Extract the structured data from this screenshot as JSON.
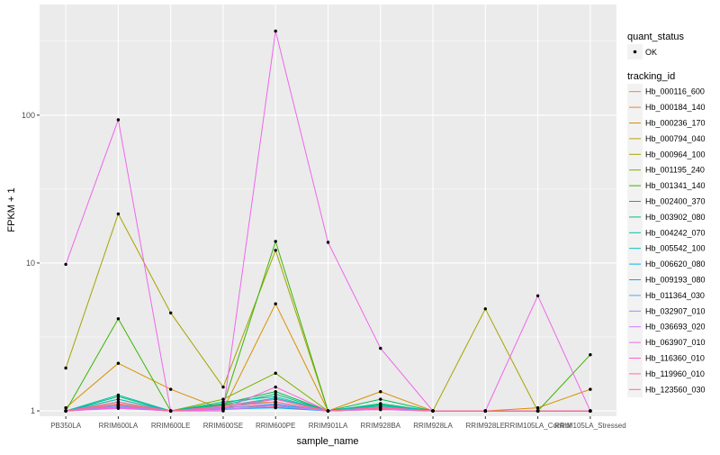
{
  "chart_data": {
    "type": "line",
    "title": "",
    "xlabel": "sample_name",
    "ylabel": "FPKM + 1",
    "y_scale": "log10",
    "ylim": [
      0.92,
      560
    ],
    "y_ticks": [
      1,
      10,
      100
    ],
    "y_tick_labels": [
      "1",
      "10",
      "100"
    ],
    "grid": true,
    "panel_background": "#ebebeb",
    "legend_position": "right",
    "categories": [
      "PB350LA",
      "RRIM600LA",
      "RRIM600LE",
      "RRIM600SE",
      "RRIM600PE",
      "RRIM901LA",
      "RRIM928BA",
      "RRIM928LA",
      "RRIM928LE",
      "RRIM105LA_Control",
      "RRIM105LA_Stressed"
    ],
    "shape_legend": {
      "title": "quant_status",
      "entries": [
        {
          "label": "OK",
          "color": "#000000"
        }
      ]
    },
    "color_legend_title": "tracking_id",
    "series": [
      {
        "name": "Hb_000116_600",
        "color": "#F8766D",
        "values": [
          1.0,
          1.12,
          1.0,
          1.05,
          1.08,
          1.0,
          1.03,
          1.0,
          1.0,
          1.0,
          1.0
        ]
      },
      {
        "name": "Hb_000184_140",
        "color": "#EA8331",
        "values": [
          1.0,
          1.08,
          1.0,
          1.02,
          1.06,
          1.0,
          1.02,
          1.0,
          1.0,
          1.0,
          1.0
        ]
      },
      {
        "name": "Hb_000236_170",
        "color": "#D89000",
        "values": [
          1.05,
          2.1,
          1.4,
          1.02,
          5.3,
          1.0,
          1.35,
          1.0,
          1.0,
          1.05,
          1.4
        ]
      },
      {
        "name": "Hb_000794_040",
        "color": "#C09B00",
        "values": [
          1.0,
          1.1,
          1.0,
          1.1,
          1.15,
          1.0,
          1.05,
          1.0,
          1.0,
          1.0,
          1.0
        ]
      },
      {
        "name": "Hb_000964_100",
        "color": "#A3A500",
        "values": [
          1.95,
          21.5,
          4.6,
          1.45,
          12.2,
          1.0,
          1.1,
          1.0,
          4.9,
          1.0,
          1.0
        ]
      },
      {
        "name": "Hb_001195_240",
        "color": "#7CAE00",
        "values": [
          1.0,
          1.2,
          1.0,
          1.2,
          1.8,
          1.0,
          1.08,
          1.0,
          1.0,
          1.0,
          1.0
        ]
      },
      {
        "name": "Hb_001341_140",
        "color": "#39B600",
        "values": [
          1.0,
          4.2,
          1.0,
          1.1,
          14.0,
          1.0,
          1.1,
          1.0,
          1.0,
          1.0,
          2.4
        ]
      },
      {
        "name": "Hb_002400_370",
        "color": "#00BB4E",
        "values": [
          1.0,
          1.15,
          1.0,
          1.12,
          1.35,
          1.0,
          1.2,
          1.0,
          1.0,
          1.0,
          1.0
        ]
      },
      {
        "name": "Hb_003902_080",
        "color": "#00BF7D",
        "values": [
          1.0,
          1.25,
          1.0,
          1.1,
          1.3,
          1.0,
          1.12,
          1.0,
          1.0,
          1.0,
          1.0
        ]
      },
      {
        "name": "Hb_004242_070",
        "color": "#00C1A3",
        "values": [
          1.0,
          1.28,
          1.0,
          1.15,
          1.25,
          1.0,
          1.1,
          1.0,
          1.0,
          1.0,
          1.0
        ]
      },
      {
        "name": "Hb_005542_100",
        "color": "#00BFC4",
        "values": [
          1.0,
          1.2,
          1.0,
          1.08,
          1.22,
          1.0,
          1.08,
          1.0,
          1.0,
          1.0,
          1.0
        ]
      },
      {
        "name": "Hb_006620_080",
        "color": "#00B8E5",
        "values": [
          1.0,
          1.1,
          1.0,
          1.05,
          1.1,
          1.0,
          1.05,
          1.0,
          1.0,
          1.0,
          1.0
        ]
      },
      {
        "name": "Hb_009193_080",
        "color": "#00ABFD",
        "values": [
          1.0,
          1.05,
          1.0,
          1.03,
          1.05,
          1.0,
          1.03,
          1.0,
          1.0,
          1.0,
          1.0
        ]
      },
      {
        "name": "Hb_011364_030",
        "color": "#619CFF",
        "values": [
          1.0,
          1.08,
          1.0,
          1.05,
          1.2,
          1.0,
          1.05,
          1.0,
          1.0,
          1.0,
          1.0
        ]
      },
      {
        "name": "Hb_032907_010",
        "color": "#A58AFF",
        "values": [
          1.0,
          1.06,
          1.0,
          1.04,
          1.12,
          1.0,
          1.04,
          1.0,
          1.0,
          1.0,
          1.0
        ]
      },
      {
        "name": "Hb_036693_020",
        "color": "#D277FF",
        "values": [
          1.0,
          1.04,
          1.0,
          1.02,
          1.08,
          1.0,
          1.02,
          1.0,
          1.0,
          1.0,
          1.0
        ]
      },
      {
        "name": "Hb_063907_010",
        "color": "#EE67EB",
        "values": [
          9.8,
          93.0,
          1.0,
          1.0,
          370.0,
          13.8,
          2.65,
          1.0,
          1.0,
          6.0,
          1.0
        ]
      },
      {
        "name": "Hb_116360_010",
        "color": "#FA62D4",
        "values": [
          1.0,
          1.05,
          1.0,
          1.03,
          1.45,
          1.0,
          1.05,
          1.0,
          1.0,
          1.0,
          1.0
        ]
      },
      {
        "name": "Hb_119960_010",
        "color": "#FF67B2",
        "values": [
          1.0,
          1.15,
          1.0,
          1.08,
          1.2,
          1.0,
          1.06,
          1.0,
          1.0,
          1.0,
          1.0
        ]
      },
      {
        "name": "Hb_123560_030",
        "color": "#FF6C91",
        "values": [
          1.0,
          1.1,
          1.0,
          1.06,
          1.15,
          1.0,
          1.04,
          1.0,
          1.0,
          1.0,
          1.0
        ]
      }
    ]
  }
}
